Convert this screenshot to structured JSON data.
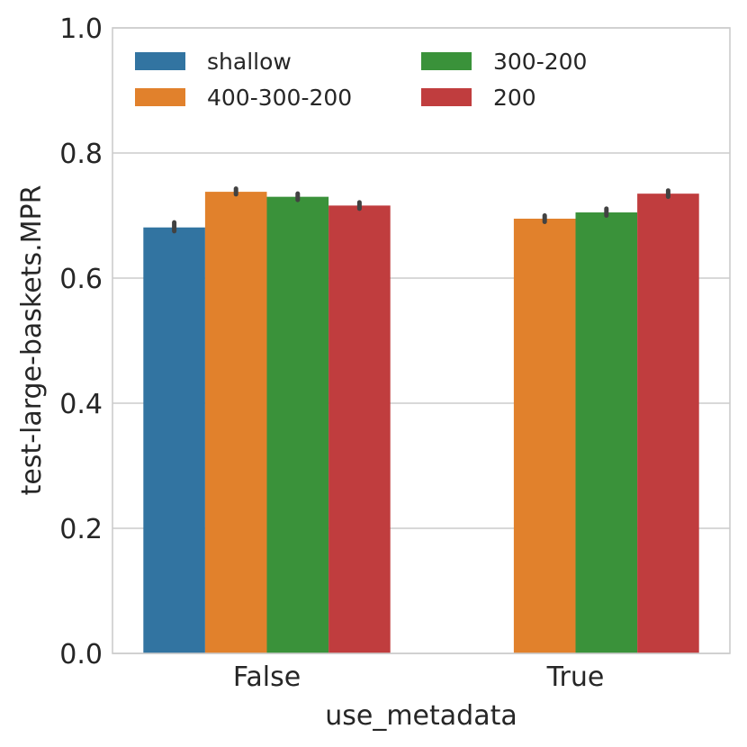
{
  "chart_data": {
    "type": "bar",
    "title": "",
    "xlabel": "use_metadata",
    "ylabel": "test-large-baskets.MPR",
    "categories": [
      "False",
      "True"
    ],
    "ylim": [
      0,
      1.0
    ],
    "yticks": [
      "0.0",
      "0.2",
      "0.4",
      "0.6",
      "0.8",
      "1.0"
    ],
    "grid": "horizontal",
    "legend_position": "top",
    "series": [
      {
        "name": "shallow",
        "color": "#3274a1",
        "values": [
          0.681,
          null
        ],
        "err": [
          [
            0.675,
            0.689
          ],
          [
            null,
            null
          ]
        ]
      },
      {
        "name": "400-300-200",
        "color": "#e1812c",
        "values": [
          0.738,
          0.695
        ],
        "err": [
          [
            0.734,
            0.743
          ],
          [
            0.69,
            0.7
          ]
        ]
      },
      {
        "name": "300-200",
        "color": "#3a923a",
        "values": [
          0.73,
          0.705
        ],
        "err": [
          [
            0.725,
            0.735
          ],
          [
            0.7,
            0.711
          ]
        ]
      },
      {
        "name": "200",
        "color": "#c03d3e",
        "values": [
          0.716,
          0.735
        ],
        "err": [
          [
            0.711,
            0.721
          ],
          [
            0.73,
            0.74
          ]
        ]
      }
    ],
    "legend_order": [
      "shallow",
      "300-200",
      "400-300-200",
      "200"
    ]
  }
}
